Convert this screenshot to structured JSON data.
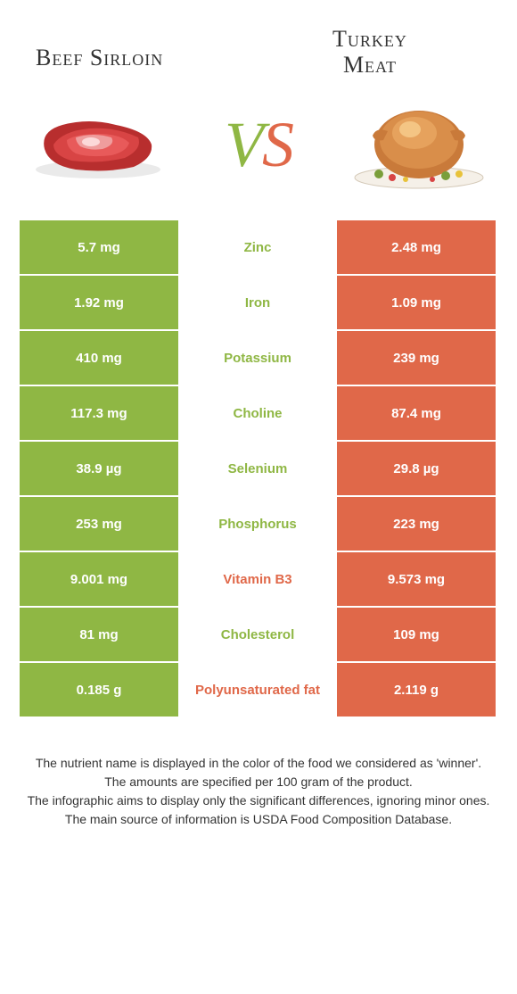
{
  "colors": {
    "green": "#8fb744",
    "orange": "#e06849",
    "white": "#ffffff"
  },
  "header": {
    "left_title": "Beef Sirloin",
    "right_title_line1": "Turkey",
    "right_title_line2": "Meat",
    "vs_v": "V",
    "vs_s": "S"
  },
  "rows": [
    {
      "left": "5.7 mg",
      "label": "Zinc",
      "right": "2.48 mg",
      "winner": "left"
    },
    {
      "left": "1.92 mg",
      "label": "Iron",
      "right": "1.09 mg",
      "winner": "left"
    },
    {
      "left": "410 mg",
      "label": "Potassium",
      "right": "239 mg",
      "winner": "left"
    },
    {
      "left": "117.3 mg",
      "label": "Choline",
      "right": "87.4 mg",
      "winner": "left"
    },
    {
      "left": "38.9 µg",
      "label": "Selenium",
      "right": "29.8 µg",
      "winner": "left"
    },
    {
      "left": "253 mg",
      "label": "Phosphorus",
      "right": "223 mg",
      "winner": "left"
    },
    {
      "left": "9.001 mg",
      "label": "Vitamin B3",
      "right": "9.573 mg",
      "winner": "right"
    },
    {
      "left": "81 mg",
      "label": "Cholesterol",
      "right": "109 mg",
      "winner": "left"
    },
    {
      "left": "0.185 g",
      "label": "Polyunsaturated fat",
      "right": "2.119 g",
      "winner": "right"
    }
  ],
  "footer": {
    "line1": "The nutrient name is displayed in the color of the food we considered as 'winner'.",
    "line2": "The amounts are specified per 100 gram of the product.",
    "line3": "The infographic aims to display only the significant differences, ignoring minor ones.",
    "line4": "The main source of information is USDA Food Composition Database."
  }
}
